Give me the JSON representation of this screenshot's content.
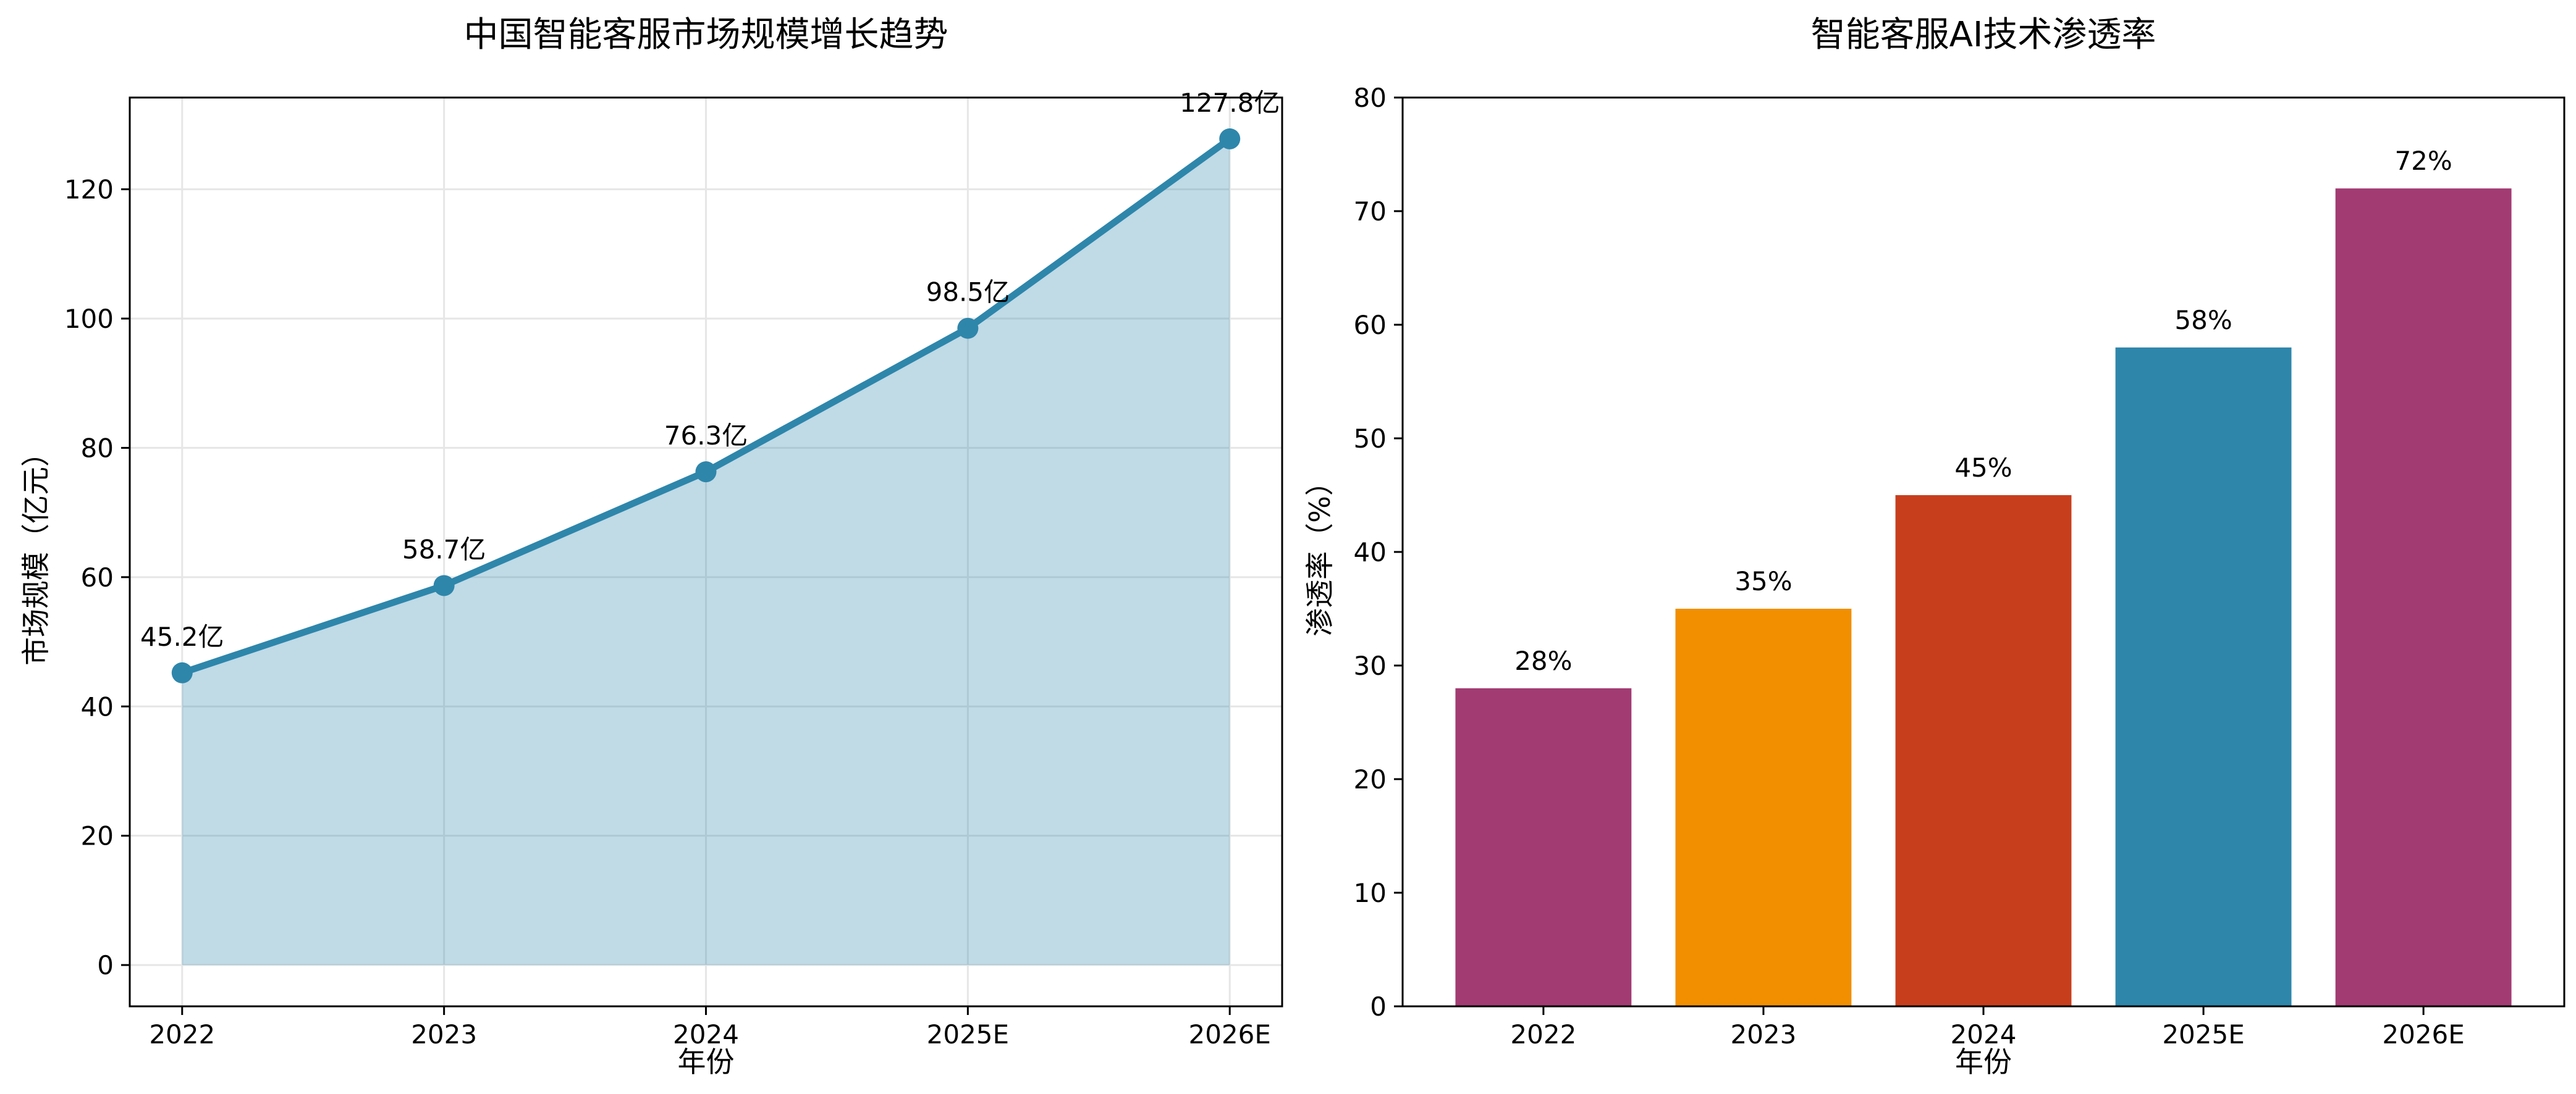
{
  "figure": {
    "background": "#ffffff",
    "text_color": "#000000",
    "spine_color": "#000000",
    "grid_color": "#e6e6e6"
  },
  "chart_data": [
    {
      "type": "area",
      "title": "中国智能客服市场规模增长趋势",
      "xlabel": "年份",
      "ylabel": "市场规模（亿元）",
      "categories": [
        "2022",
        "2023",
        "2024",
        "2025E",
        "2026E"
      ],
      "values": [
        45.2,
        58.7,
        76.3,
        98.5,
        127.8
      ],
      "value_labels": [
        "45.2亿",
        "58.7亿",
        "76.3亿",
        "98.5亿",
        "127.8亿"
      ],
      "yticks": [
        0,
        20,
        40,
        60,
        80,
        100,
        120
      ],
      "ylim": [
        -6.39,
        134.19
      ],
      "xlim_pad": 0.2,
      "grid": true,
      "line_color": "#2E86AB",
      "fill_color": "rgba(46,134,171,0.3)",
      "marker": "circle"
    },
    {
      "type": "bar",
      "title": "智能客服AI技术渗透率",
      "xlabel": "年份",
      "ylabel": "渗透率（%）",
      "categories": [
        "2022",
        "2023",
        "2024",
        "2025E",
        "2026E"
      ],
      "values": [
        28,
        35,
        45,
        58,
        72
      ],
      "value_labels": [
        "28%",
        "35%",
        "45%",
        "58%",
        "72%"
      ],
      "yticks": [
        0,
        10,
        20,
        30,
        40,
        50,
        60,
        70,
        80
      ],
      "ylim": [
        0,
        80
      ],
      "xlim_pad": 0.64,
      "grid": false,
      "bar_width": 0.8,
      "bar_colors": [
        "#A23B72",
        "#F18F01",
        "#C73E1D",
        "#2E86AB",
        "#A23B72"
      ]
    }
  ]
}
